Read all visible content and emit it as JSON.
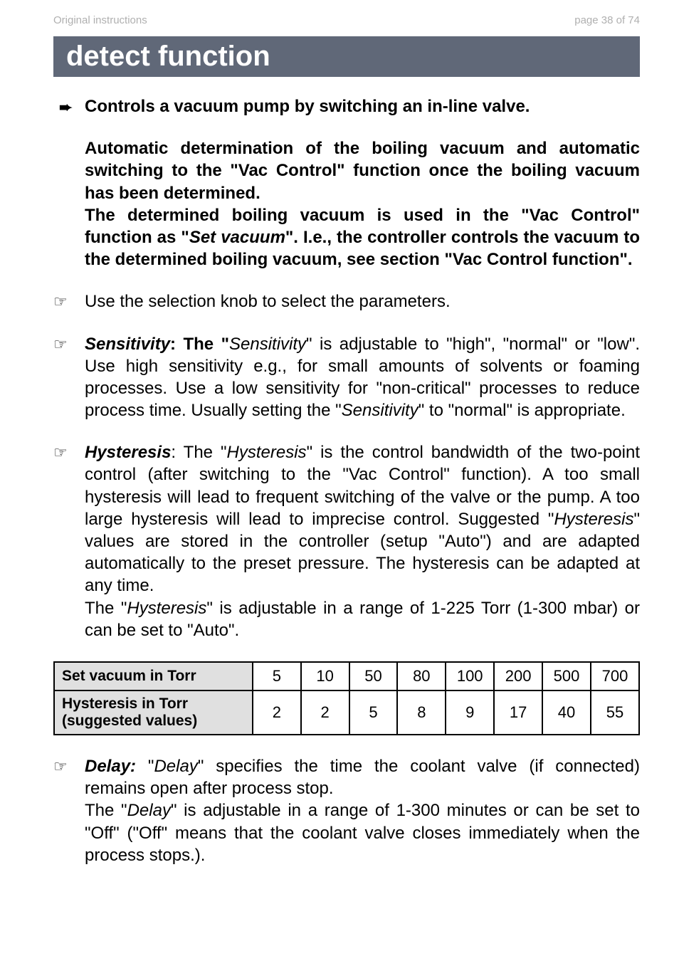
{
  "header": {
    "left": "Original instructions",
    "right": "page 38 of 74"
  },
  "title": "detect function",
  "intro": {
    "line1": "Controls a vacuum pump by switching an in-line valve.",
    "para2": "Automatic determination of the boiling vacuum and automatic switching to the \"Vac Control\" function once the boiling vacuum has been determined.",
    "para3a": "The determined boiling vacuum is used in the \"Vac Control\" function as \"",
    "para3_set": "Set vacuum",
    "para3b": "\". I.e., the controller controls the vacuum to the determined boiling vacuum, see section \"Vac Control function\"."
  },
  "bullet1": "Use the selection knob to select the parameters.",
  "sensitivity": {
    "label": "Sensitivity",
    "pre": ": The \"",
    "mid_italic": "Sensitivity",
    "text1": "\" is adjustable to \"high\", \"normal\" or \"low\". Use high sensitivity e.g., for small amounts of solvents or foaming processes. Use a low sensitivity for \"non-critical\" processes to reduce process time. Usually setting the \"",
    "mid_italic2": "Sensitivity",
    "text2": "\" to \"normal\" is appropriate."
  },
  "hysteresis": {
    "label": "Hysteresis",
    "pre": ": The \"",
    "mid_italic": "Hysteresis",
    "text1": "\" is the control bandwidth of the two-point control (after switching to the \"Vac Control\" function). A too small hysteresis will lead to frequent switching of the valve or the pump. A too large hysteresis will lead to imprecise control. Suggested \"",
    "mid_italic2": "Hysteresis",
    "text2": "\" values are stored in the controller (setup \"Auto\") and are adapted automatically to the preset pressure. The hysteresis can be adapted at any time.",
    "cont_pre": "The \"",
    "cont_italic": "Hysteresis",
    "cont_post": "\" is adjustable in a range of 1-225 Torr (1-300 mbar) or can be set to \"Auto\"."
  },
  "table": {
    "row1_label": "Set vacuum in Torr",
    "row1_vals": [
      "5",
      "10",
      "50",
      "80",
      "100",
      "200",
      "500",
      "700"
    ],
    "row2_label": "Hysteresis in Torr (suggested values)",
    "row2_vals": [
      "2",
      "2",
      "5",
      "8",
      "9",
      "17",
      "40",
      "55"
    ]
  },
  "delay": {
    "label": "Delay:",
    "pre": " \"",
    "italic1": "Delay",
    "text1": "\" specifies the time the coolant valve (if connected) remains open after process stop.",
    "cont_pre": "The \"",
    "cont_italic": "Delay",
    "cont_post": "\" is adjustable in a range of 1-300 minutes or can be set to \"Off\" (\"Off\" means that the coolant valve closes immediately when the process stops.)."
  }
}
